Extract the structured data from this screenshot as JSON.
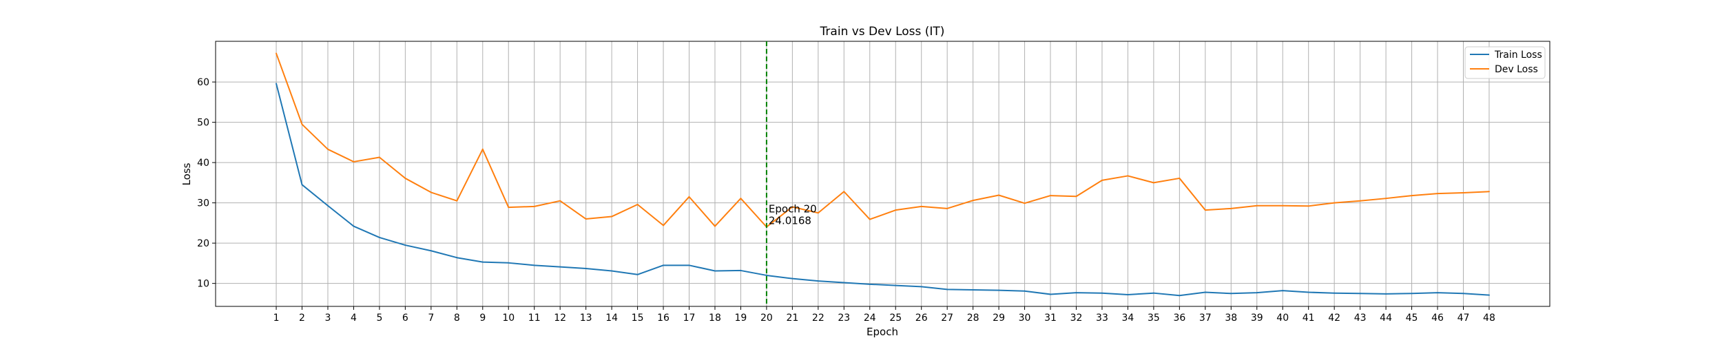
{
  "chart_data": {
    "type": "line",
    "title": "Train vs Dev Loss (IT)",
    "xlabel": "Epoch",
    "ylabel": "Loss",
    "x": [
      1,
      2,
      3,
      4,
      5,
      6,
      7,
      8,
      9,
      10,
      11,
      12,
      13,
      14,
      15,
      16,
      17,
      18,
      19,
      20,
      21,
      22,
      23,
      24,
      25,
      26,
      27,
      28,
      29,
      30,
      31,
      32,
      33,
      34,
      35,
      36,
      37,
      38,
      39,
      40,
      41,
      42,
      43,
      44,
      45,
      46,
      47,
      48
    ],
    "xticks": [
      1,
      2,
      3,
      4,
      5,
      6,
      7,
      8,
      9,
      10,
      11,
      12,
      13,
      14,
      15,
      16,
      17,
      18,
      19,
      20,
      21,
      22,
      23,
      24,
      25,
      26,
      27,
      28,
      29,
      30,
      31,
      32,
      33,
      34,
      35,
      36,
      37,
      38,
      39,
      40,
      41,
      42,
      43,
      44,
      45,
      46,
      47,
      48
    ],
    "yticks": [
      10,
      20,
      30,
      40,
      50,
      60
    ],
    "xlim": [
      -1.35,
      50.35
    ],
    "ylim": [
      4.3,
      70.1
    ],
    "grid": true,
    "legend_position": "top-right",
    "series": [
      {
        "name": "Train Loss",
        "color": "#1f77b4",
        "values": [
          59.6,
          34.5,
          29.3,
          24.2,
          21.4,
          19.5,
          18.1,
          16.4,
          15.3,
          15.1,
          14.5,
          14.1,
          13.7,
          13.1,
          12.2,
          14.5,
          14.5,
          13.1,
          13.2,
          12.0,
          11.2,
          10.6,
          10.2,
          9.8,
          9.5,
          9.2,
          8.5,
          8.4,
          8.3,
          8.1,
          7.3,
          7.7,
          7.6,
          7.2,
          7.6,
          7.0,
          7.8,
          7.5,
          7.7,
          8.2,
          7.8,
          7.6,
          7.5,
          7.4,
          7.5,
          7.7,
          7.5,
          7.1
        ]
      },
      {
        "name": "Dev Loss",
        "color": "#ff7f0e",
        "values": [
          67.1,
          49.5,
          43.3,
          40.2,
          41.3,
          36.1,
          32.6,
          30.5,
          43.3,
          28.9,
          29.1,
          30.5,
          26.0,
          26.6,
          29.6,
          24.4,
          31.5,
          24.2,
          31.1,
          24.0168,
          29.0,
          27.5,
          32.8,
          25.9,
          28.2,
          29.1,
          28.6,
          30.6,
          31.9,
          29.9,
          31.8,
          31.6,
          35.6,
          36.7,
          35.0,
          36.1,
          28.2,
          28.6,
          29.3,
          29.3,
          29.2,
          30.0,
          30.5,
          31.1,
          31.8,
          32.3,
          32.5,
          32.8
        ]
      }
    ],
    "vline": {
      "x": 20,
      "color": "#008000",
      "style": "dashed"
    },
    "annotation": {
      "x": 20,
      "y": 24.0168,
      "line1": "Epoch 20",
      "line2": "24.0168"
    }
  }
}
